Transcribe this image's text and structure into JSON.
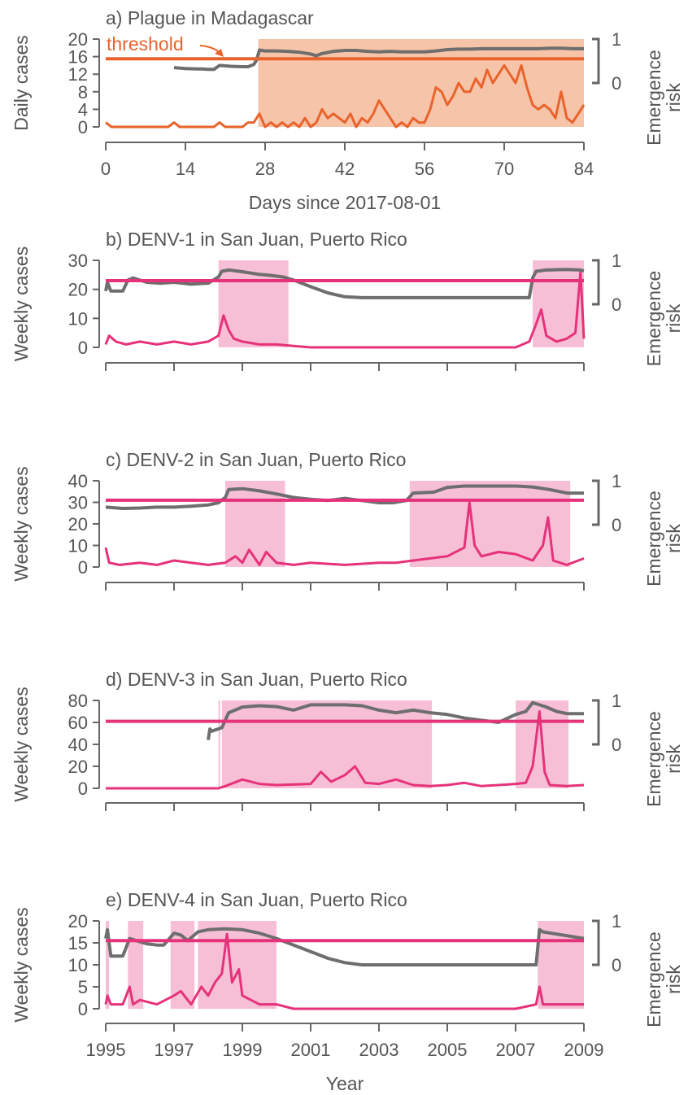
{
  "colors": {
    "axis": "#666666",
    "risk_line": "#6e6e6e",
    "plague": "#e8642c",
    "plague_shade": "#f6c4a8",
    "dengue": "#e6327a",
    "dengue_shade": "#f6bfd6"
  },
  "chart_data": [
    {
      "type": "line",
      "title": "a) Plague in Madagascar",
      "xlabel": "Days since 2017-08-01",
      "ylabel": "Daily cases",
      "ylabel_right": [
        "Emergence",
        "risk"
      ],
      "annotation": "threshold",
      "xlim": [
        0,
        84
      ],
      "ylim": [
        0,
        20
      ],
      "x_ticks": [
        0,
        14,
        28,
        42,
        56,
        70,
        84
      ],
      "y_ticks": [
        0,
        4,
        8,
        12,
        16,
        20
      ],
      "right_ticks": [
        0,
        1
      ],
      "threshold": 15.5,
      "shaded": [
        [
          26.8,
          84
        ]
      ],
      "series": [
        {
          "role": "cases",
          "x": [
            0,
            1,
            2,
            3,
            4,
            5,
            6,
            7,
            8,
            9,
            10,
            11,
            12,
            13,
            14,
            15,
            16,
            17,
            18,
            19,
            20,
            21,
            22,
            23,
            24,
            25,
            26,
            27,
            28,
            29,
            30,
            31,
            32,
            33,
            34,
            35,
            36,
            37,
            38,
            39,
            40,
            41,
            42,
            43,
            44,
            45,
            46,
            47,
            48,
            49,
            50,
            51,
            52,
            53,
            54,
            55,
            56,
            57,
            58,
            59,
            60,
            61,
            62,
            63,
            64,
            65,
            66,
            67,
            68,
            69,
            70,
            71,
            72,
            73,
            74,
            75,
            76,
            77,
            78,
            79,
            80,
            81,
            82,
            83,
            84
          ],
          "y": [
            1,
            0,
            0,
            0,
            0,
            0,
            0,
            0,
            0,
            0,
            0,
            0,
            1,
            0,
            0,
            0,
            0,
            0,
            0,
            0,
            1,
            0,
            0,
            0,
            0,
            1,
            1,
            3,
            0,
            1,
            0,
            1,
            0,
            1,
            0,
            2,
            0,
            1,
            4,
            2,
            3,
            2,
            1,
            3,
            0,
            2,
            1,
            3,
            6,
            4,
            2,
            0,
            1,
            0,
            2,
            1,
            1,
            4,
            9,
            8,
            5,
            7,
            10,
            8,
            8,
            11,
            9,
            13,
            10,
            12,
            14,
            12,
            10,
            14,
            9,
            5,
            4,
            5,
            4,
            2,
            8,
            2,
            1,
            3,
            5
          ]
        },
        {
          "role": "emergence_risk",
          "x": [
            12,
            14,
            16,
            17,
            18,
            19,
            20,
            22,
            24,
            25,
            26,
            26.5,
            27,
            28,
            30,
            32,
            34,
            36,
            37,
            38,
            40,
            42,
            44,
            46,
            48,
            50,
            52,
            54,
            56,
            58,
            60,
            62,
            64,
            66,
            68,
            70,
            72,
            74,
            76,
            78,
            80,
            82,
            84
          ],
          "y": [
            0.35,
            0.33,
            0.32,
            0.32,
            0.31,
            0.31,
            0.4,
            0.38,
            0.37,
            0.37,
            0.42,
            0.52,
            0.75,
            0.73,
            0.73,
            0.72,
            0.7,
            0.66,
            0.62,
            0.67,
            0.72,
            0.74,
            0.74,
            0.72,
            0.71,
            0.72,
            0.71,
            0.71,
            0.71,
            0.73,
            0.76,
            0.77,
            0.77,
            0.78,
            0.78,
            0.78,
            0.78,
            0.78,
            0.78,
            0.79,
            0.79,
            0.78,
            0.78
          ]
        }
      ]
    },
    {
      "type": "line",
      "title": "b) DENV-1 in San Juan, Puerto Rico",
      "xlabel": "",
      "ylabel": "Weekly cases",
      "ylabel_right": [
        "Emergence",
        "risk"
      ],
      "xlim": [
        1995,
        2009
      ],
      "ylim": [
        0,
        30
      ],
      "y_ticks": [
        0,
        10,
        20,
        30
      ],
      "right_ticks": [
        0,
        1
      ],
      "threshold": 23,
      "shaded": [
        [
          1998.3,
          2000.35
        ],
        [
          2007.5,
          2009
        ]
      ],
      "series": [
        {
          "role": "emergence_risk",
          "x": [
            1995.0,
            1995.05,
            1995.15,
            1995.5,
            1995.65,
            1995.8,
            1996.2,
            1996.6,
            1997.0,
            1997.5,
            1998.0,
            1998.3,
            1998.4,
            1998.6,
            1999.0,
            1999.5,
            1999.8,
            2000.2,
            2000.5,
            2001.0,
            2001.5,
            2002.0,
            2002.5,
            2003.0,
            2004.0,
            2005.0,
            2006.0,
            2007.0,
            2007.4,
            2007.5,
            2007.6,
            2007.9,
            2008.5,
            2008.9,
            2009.0
          ],
          "y": [
            0.3,
            0.5,
            0.3,
            0.3,
            0.55,
            0.6,
            0.5,
            0.48,
            0.5,
            0.46,
            0.48,
            0.62,
            0.75,
            0.78,
            0.74,
            0.68,
            0.66,
            0.62,
            0.55,
            0.4,
            0.26,
            0.17,
            0.15,
            0.15,
            0.15,
            0.15,
            0.15,
            0.15,
            0.15,
            0.6,
            0.75,
            0.78,
            0.79,
            0.78,
            0.76
          ]
        },
        {
          "role": "cases",
          "x": [
            1995.0,
            1995.1,
            1995.3,
            1995.6,
            1996.0,
            1996.5,
            1997.0,
            1997.5,
            1998.0,
            1998.3,
            1998.45,
            1998.6,
            1998.75,
            1999.0,
            1999.5,
            2000.0,
            2000.5,
            2001.0,
            2002.0,
            2003.0,
            2004.0,
            2005.0,
            2006.0,
            2007.0,
            2007.4,
            2007.6,
            2007.75,
            2007.9,
            2008.2,
            2008.5,
            2008.75,
            2008.9,
            2009.0
          ],
          "y": [
            1,
            4,
            2,
            1,
            2,
            1,
            2,
            1,
            2,
            4,
            11,
            6,
            3,
            2,
            1,
            1,
            0.5,
            0,
            0,
            0,
            0,
            0,
            0,
            0,
            2,
            8,
            13,
            4,
            2,
            3,
            5,
            26,
            3
          ]
        }
      ]
    },
    {
      "type": "line",
      "title": "c) DENV-2 in San Juan, Puerto Rico",
      "xlabel": "",
      "ylabel": "Weekly cases",
      "ylabel_right": [
        "Emergence",
        "risk"
      ],
      "xlim": [
        1995,
        2009
      ],
      "ylim": [
        0,
        40
      ],
      "y_ticks": [
        0,
        10,
        20,
        30,
        40
      ],
      "right_ticks": [
        0,
        1
      ],
      "threshold": 31,
      "shaded": [
        [
          1998.5,
          2000.25
        ],
        [
          2003.9,
          2008.6
        ]
      ],
      "series": [
        {
          "role": "emergence_risk",
          "x": [
            1995.0,
            1995.5,
            1996.0,
            1996.5,
            1997.0,
            1997.5,
            1998.0,
            1998.3,
            1998.5,
            1998.6,
            1999.0,
            1999.5,
            2000.0,
            2000.5,
            2001.0,
            2001.5,
            2002.0,
            2002.5,
            2003.0,
            2003.4,
            2003.8,
            2004.0,
            2004.6,
            2005.0,
            2005.5,
            2006.0,
            2006.5,
            2007.0,
            2007.5,
            2008.0,
            2008.5,
            2009.0
          ],
          "y": [
            0.4,
            0.37,
            0.38,
            0.4,
            0.4,
            0.42,
            0.45,
            0.5,
            0.62,
            0.8,
            0.82,
            0.77,
            0.7,
            0.62,
            0.58,
            0.55,
            0.6,
            0.55,
            0.5,
            0.5,
            0.55,
            0.72,
            0.74,
            0.85,
            0.88,
            0.88,
            0.88,
            0.88,
            0.86,
            0.8,
            0.72,
            0.72
          ]
        },
        {
          "role": "cases",
          "x": [
            1995.0,
            1995.1,
            1995.4,
            1996.0,
            1996.5,
            1997.0,
            1997.5,
            1998.0,
            1998.5,
            1998.8,
            1999.0,
            1999.2,
            1999.5,
            1999.7,
            2000.0,
            2000.5,
            2001.0,
            2002.0,
            2003.0,
            2003.5,
            2004.0,
            2004.5,
            2005.0,
            2005.5,
            2005.65,
            2005.8,
            2006.0,
            2006.5,
            2007.0,
            2007.5,
            2007.8,
            2007.95,
            2008.1,
            2008.5,
            2009.0
          ],
          "y": [
            9,
            2,
            1,
            2,
            1,
            3,
            2,
            1,
            2,
            5,
            2,
            8,
            1,
            7,
            2,
            1,
            2,
            1,
            2,
            2,
            3,
            4,
            5,
            9,
            30,
            10,
            5,
            7,
            6,
            3,
            10,
            23,
            3,
            1,
            4
          ]
        }
      ]
    },
    {
      "type": "line",
      "title": "d) DENV-3 in San Juan, Puerto Rico",
      "xlabel": "",
      "ylabel": "Weekly cases",
      "ylabel_right": [
        "Emergence",
        "risk"
      ],
      "xlim": [
        1995,
        2009
      ],
      "ylim": [
        0,
        80
      ],
      "y_ticks": [
        0,
        20,
        40,
        60,
        80
      ],
      "right_ticks": [
        0,
        1
      ],
      "threshold": 61,
      "shaded": [
        [
          1998.3,
          1998.35
        ],
        [
          1998.4,
          2004.55
        ],
        [
          2007.0,
          2008.55
        ]
      ],
      "series": [
        {
          "role": "emergence_risk",
          "x": [
            1998.0,
            1998.05,
            1998.1,
            1998.4,
            1998.6,
            1999.0,
            1999.5,
            2000.0,
            2000.5,
            2001.0,
            2001.5,
            2002.0,
            2002.5,
            2003.0,
            2003.5,
            2004.0,
            2004.5,
            2005.0,
            2005.5,
            2006.0,
            2006.5,
            2007.0,
            2007.3,
            2007.5,
            2007.7,
            2007.9,
            2008.2,
            2008.5,
            2009.0
          ],
          "y": [
            0.1,
            0.35,
            0.3,
            0.38,
            0.72,
            0.85,
            0.88,
            0.86,
            0.78,
            0.9,
            0.9,
            0.9,
            0.88,
            0.78,
            0.72,
            0.78,
            0.72,
            0.68,
            0.6,
            0.55,
            0.5,
            0.68,
            0.75,
            0.95,
            0.9,
            0.85,
            0.75,
            0.7,
            0.7
          ]
        },
        {
          "role": "cases",
          "x": [
            1995.0,
            1998.3,
            1998.5,
            1999.0,
            1999.5,
            2000.0,
            2001.0,
            2001.3,
            2001.6,
            2002.0,
            2002.3,
            2002.6,
            2003.0,
            2003.5,
            2004.0,
            2004.5,
            2005.0,
            2005.5,
            2006.0,
            2006.5,
            2007.0,
            2007.3,
            2007.5,
            2007.7,
            2007.85,
            2008.0,
            2008.5,
            2009.0
          ],
          "y": [
            0,
            0,
            2,
            8,
            4,
            3,
            4,
            15,
            6,
            12,
            20,
            5,
            4,
            8,
            3,
            2,
            3,
            5,
            2,
            3,
            4,
            5,
            20,
            70,
            15,
            3,
            2,
            3
          ]
        }
      ]
    },
    {
      "type": "line",
      "title": "e) DENV-4 in San Juan, Puerto Rico",
      "xlabel": "Year",
      "ylabel": "Weekly cases",
      "ylabel_right": [
        "Emergence",
        "risk"
      ],
      "xlim": [
        1995,
        2009
      ],
      "ylim": [
        0,
        20
      ],
      "x_ticks": [
        1995,
        1997,
        1999,
        2001,
        2003,
        2005,
        2007,
        2009
      ],
      "y_ticks": [
        0,
        5,
        10,
        15,
        20
      ],
      "right_ticks": [
        0,
        1
      ],
      "threshold": 15.5,
      "shaded": [
        [
          1995.0,
          1995.1
        ],
        [
          1995.65,
          1996.1
        ],
        [
          1996.9,
          1997.6
        ],
        [
          1997.7,
          2000.0
        ],
        [
          2007.65,
          2009.0
        ]
      ],
      "series": [
        {
          "role": "emergence_risk",
          "x": [
            1995.0,
            1995.05,
            1995.15,
            1995.5,
            1995.7,
            1995.9,
            1996.2,
            1996.5,
            1996.7,
            1997.0,
            1997.2,
            1997.4,
            1997.7,
            1998.0,
            1998.5,
            1999.0,
            1999.5,
            2000.0,
            2000.5,
            2001.0,
            2001.5,
            2002.0,
            2002.5,
            2003.0,
            2004.0,
            2005.0,
            2006.0,
            2007.0,
            2007.6,
            2007.7,
            2007.8,
            2008.2,
            2008.6,
            2009.0
          ],
          "y": [
            0.6,
            0.8,
            0.2,
            0.2,
            0.6,
            0.55,
            0.48,
            0.45,
            0.45,
            0.72,
            0.68,
            0.55,
            0.75,
            0.8,
            0.82,
            0.8,
            0.72,
            0.6,
            0.45,
            0.3,
            0.15,
            0.05,
            0.0,
            0.0,
            0.0,
            0.0,
            0.0,
            0.0,
            0.0,
            0.8,
            0.75,
            0.7,
            0.65,
            0.6
          ]
        },
        {
          "role": "cases",
          "x": [
            1995.0,
            1995.05,
            1995.15,
            1995.5,
            1995.7,
            1995.8,
            1996.0,
            1996.5,
            1997.0,
            1997.2,
            1997.5,
            1997.8,
            1998.0,
            1998.2,
            1998.4,
            1998.55,
            1998.7,
            1998.9,
            1999.0,
            1999.5,
            2000.0,
            2000.5,
            2001.0,
            2002.0,
            2003.0,
            2004.0,
            2005.0,
            2006.0,
            2007.0,
            2007.6,
            2007.7,
            2007.8,
            2008.0,
            2008.5,
            2009.0
          ],
          "y": [
            1,
            3,
            1,
            1,
            5,
            1,
            2,
            1,
            3,
            4,
            1,
            5,
            3,
            6,
            8,
            17,
            6,
            9,
            3,
            1,
            1,
            0,
            0,
            0,
            0,
            0,
            0,
            0,
            0,
            1,
            5,
            1,
            1,
            1,
            1
          ]
        }
      ]
    }
  ]
}
